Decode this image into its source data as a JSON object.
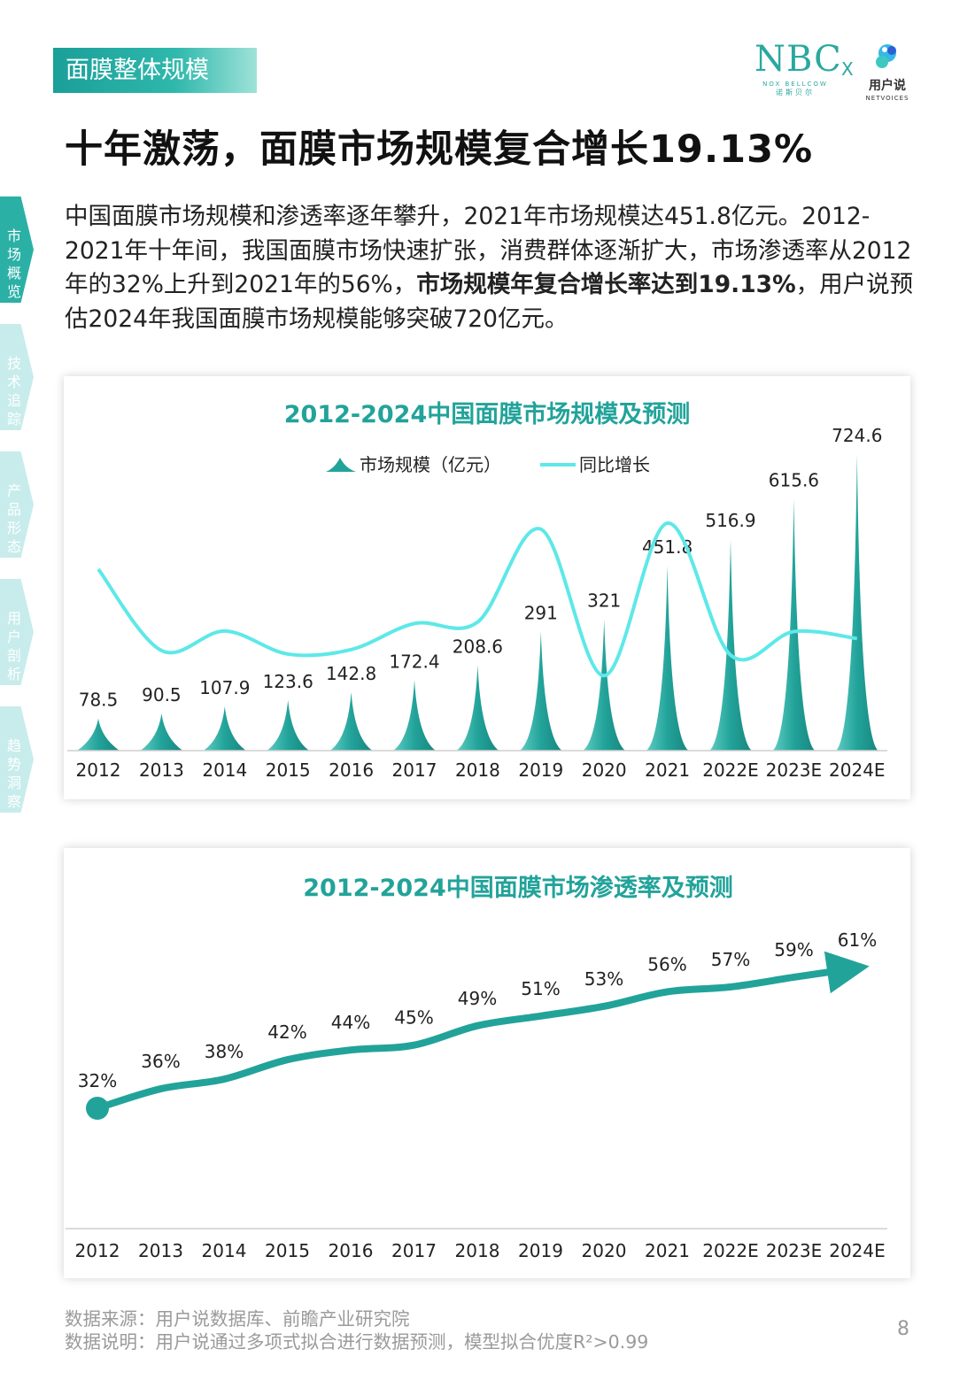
{
  "section_label": "面膜整体规模",
  "logo": {
    "brand": "NBC",
    "brand_sub": "NOX BELLCOW",
    "brand_cn": "诺斯贝尔",
    "separator": "X",
    "partner_cn": "用户说",
    "partner_en": "NETVOICES"
  },
  "title": "十年激荡，面膜市场规模复合增长19.13%",
  "intro": {
    "part1": "中国面膜市场规模和渗透率逐年攀升，2021年市场规模达451.8亿元。2012-2021年十年间，我国面膜市场快速扩张，消费群体逐渐扩大，市场渗透率从2012年的32%上升到2021年的56%，",
    "bold": "市场规模年复合增长率达到19.13%",
    "part2": "，用户说预估2024年我国面膜市场规模能够突破720亿元。"
  },
  "side_nav": [
    {
      "label": "市场概览",
      "active": true
    },
    {
      "label": "技术追踪",
      "active": false
    },
    {
      "label": "产品形态",
      "active": false
    },
    {
      "label": "用户剖析",
      "active": false
    },
    {
      "label": "趋势洞察",
      "active": false
    }
  ],
  "chart_data": [
    {
      "type": "bar",
      "title": "2012-2024中国面膜市场规模及预测",
      "categories": [
        "2012",
        "2013",
        "2014",
        "2015",
        "2016",
        "2017",
        "2018",
        "2019",
        "2020",
        "2021",
        "2022E",
        "2023E",
        "2024E"
      ],
      "series": [
        {
          "name": "市场规模（亿元）",
          "kind": "bar",
          "values": [
            78.5,
            90.5,
            107.9,
            123.6,
            142.8,
            172.4,
            208.6,
            291,
            321,
            451.8,
            516.9,
            615.6,
            724.6
          ],
          "value_labels": [
            "78.5",
            "90.5",
            "107.9",
            "123.6",
            "142.8",
            "172.4",
            "208.6",
            "291",
            "321",
            "451.8",
            "516.9",
            "615.6",
            "724.6"
          ]
        },
        {
          "name": "同比增长",
          "kind": "line",
          "values": [
            null,
            15.3,
            19.2,
            14.6,
            15.5,
            20.7,
            21.0,
            39.5,
            10.3,
            40.7,
            14.4,
            19.1,
            17.7
          ]
        }
      ],
      "ylim": [
        0,
        800
      ],
      "colors": {
        "bar": "#22a39a",
        "line": "#5ee8e8"
      },
      "legend_position": "top"
    },
    {
      "type": "line",
      "title": "2012-2024中国面膜市场渗透率及预测",
      "categories": [
        "2012",
        "2013",
        "2014",
        "2015",
        "2016",
        "2017",
        "2018",
        "2019",
        "2020",
        "2021",
        "2022E",
        "2023E",
        "2024E"
      ],
      "series": [
        {
          "values": [
            32,
            36,
            38,
            42,
            44,
            45,
            49,
            51,
            53,
            56,
            57,
            59,
            61
          ],
          "value_labels": [
            "32%",
            "36%",
            "38%",
            "42%",
            "44%",
            "45%",
            "49%",
            "51%",
            "53%",
            "56%",
            "57%",
            "59%",
            "61%"
          ]
        }
      ],
      "ylim": [
        0,
        80
      ],
      "colors": {
        "line": "#22a39a"
      }
    }
  ],
  "footer": {
    "source": "数据来源：用户说数据库、前瞻产业研究院",
    "note": "数据说明：用户说通过多项式拟合进行数据预测，模型拟合优度R²>0.99"
  },
  "page_number": "8"
}
